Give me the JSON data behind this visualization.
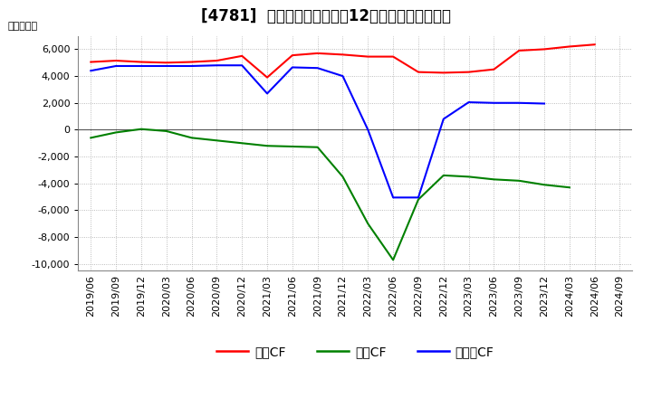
{
  "title": "[4781]  キャッシュフローの12か月移動合計の推移",
  "ylabel": "（百万円）",
  "ylim": [
    -10500,
    7000
  ],
  "yticks": [
    -10000,
    -8000,
    -6000,
    -4000,
    -2000,
    0,
    2000,
    4000,
    6000
  ],
  "x_labels": [
    "2019/06",
    "2019/09",
    "2019/12",
    "2020/03",
    "2020/06",
    "2020/09",
    "2020/12",
    "2021/03",
    "2021/06",
    "2021/09",
    "2021/12",
    "2022/03",
    "2022/06",
    "2022/09",
    "2022/12",
    "2023/03",
    "2023/06",
    "2023/09",
    "2023/12",
    "2024/03",
    "2024/06",
    "2024/09"
  ],
  "eigyo": [
    5050,
    5150,
    5050,
    5000,
    5050,
    5150,
    5500,
    3900,
    5550,
    5700,
    5600,
    5450,
    5450,
    4300,
    4250,
    4300,
    4500,
    5900,
    6000,
    6200,
    6350,
    null
  ],
  "toshi": [
    -600,
    -200,
    50,
    -100,
    -600,
    -800,
    -1000,
    -1200,
    -1250,
    -1300,
    -3500,
    -7000,
    -9700,
    -5200,
    -3400,
    -3500,
    -3700,
    -3800,
    -4100,
    -4300,
    null,
    null
  ],
  "free": [
    4400,
    4750,
    4750,
    4750,
    4750,
    4800,
    4800,
    2700,
    4650,
    4600,
    4000,
    0,
    -5050,
    -5050,
    800,
    2050,
    2000,
    2000,
    1950,
    null,
    null,
    null
  ],
  "color_eigyo": "#ff0000",
  "color_toshi": "#008000",
  "color_free": "#0000ff",
  "legend_labels": [
    "営業CF",
    "投資CF",
    "フリーCF"
  ],
  "background_color": "#ffffff",
  "grid_color": "#aaaaaa",
  "title_fontsize": 12,
  "axis_fontsize": 8,
  "legend_fontsize": 10
}
